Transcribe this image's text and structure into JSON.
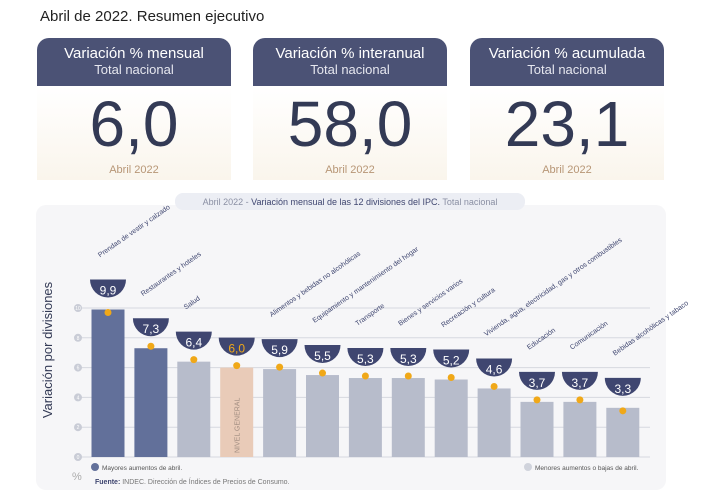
{
  "title": "Abril de 2022. Resumen ejecutivo",
  "cards": [
    {
      "label": "Variación % mensual",
      "sub": "Total nacional",
      "value": "6,0",
      "date": "Abril 2022"
    },
    {
      "label": "Variación % interanual",
      "sub": "Total nacional",
      "value": "58,0",
      "date": "Abril 2022"
    },
    {
      "label": "Variación % acumulada",
      "sub": "Total nacional",
      "value": "23,1",
      "date": "Abril 2022"
    }
  ],
  "chart_data": {
    "type": "bar",
    "title_prefix": "Abril 2022 - ",
    "title": "Variación mensual de las 12 divisiones del IPC.",
    "title_suffix": " Total nacional",
    "ylabel": "Variación por divisiones",
    "unit": "%",
    "ylim": [
      0,
      10
    ],
    "yticks": [
      "0",
      "2",
      "4",
      "6",
      "8",
      "10"
    ],
    "categories": [
      "Prendas de vestir y calzado",
      "Restaurantes y hoteles",
      "Salud",
      "NIVEL GENERAL",
      "Alimentos y bebidas no alcohólicas",
      "Equipamiento y mantenimiento del hogar",
      "Transporte",
      "Bienes y servicios varios",
      "Recreación y cultura",
      "Vivienda, agua, electricidad, gas y otros combustibles",
      "Educación",
      "Comunicación",
      "Bebidas alcohólicas y tabaco"
    ],
    "values": [
      9.9,
      7.3,
      6.4,
      6.0,
      5.9,
      5.5,
      5.3,
      5.3,
      5.2,
      4.6,
      3.7,
      3.7,
      3.3
    ],
    "labels": [
      "9,9",
      "7,3",
      "6,4",
      "6,0",
      "5,9",
      "5,5",
      "5,3",
      "5,3",
      "5,2",
      "4,6",
      "3,7",
      "3,7",
      "3,3"
    ],
    "groups": [
      "high",
      "high",
      "low",
      "general",
      "low",
      "low",
      "low",
      "low",
      "low",
      "low",
      "low",
      "low",
      "low"
    ],
    "colors": {
      "high": "#62709a",
      "low": "#b7bccb",
      "general": "#e9cbb8",
      "accent": "#f0a818",
      "dark": "#3f4670"
    },
    "legend": {
      "high": "Mayores aumentos de abril.",
      "low": "Menores aumentos o bajas de abril."
    },
    "source_label": "Fuente:",
    "source": " INDEC. Dirección de Índices de Precios de Consumo."
  }
}
